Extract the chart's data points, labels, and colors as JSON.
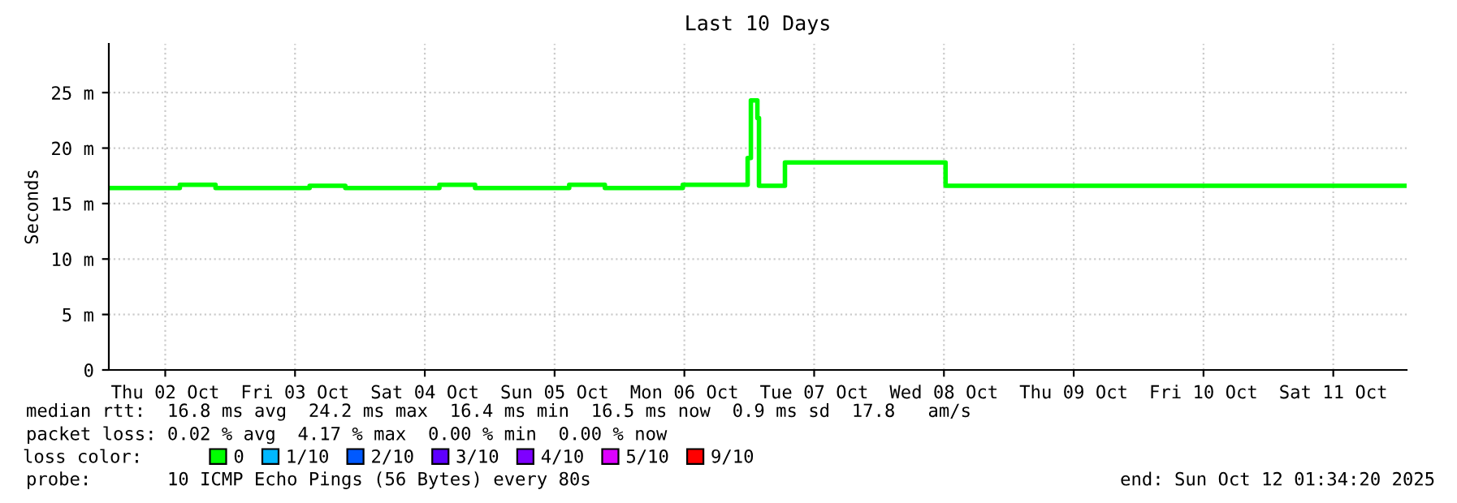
{
  "chart_data": {
    "type": "step",
    "title": "Last 10 Days",
    "ylabel": "Seconds",
    "x": [
      "2025-10-02T01:34",
      "2025-10-02T14:42",
      "2025-10-02T21:18",
      "2025-10-03T14:42",
      "2025-10-03T21:18",
      "2025-10-04T14:42",
      "2025-10-04T21:18",
      "2025-10-05T14:42",
      "2025-10-05T21:18",
      "2025-10-06T11:42",
      "2025-10-06T23:42",
      "2025-10-07T00:18",
      "2025-10-07T01:30",
      "2025-10-07T01:48",
      "2025-10-07T06:36",
      "2025-10-08T12:18",
      "2025-10-12T01:34"
    ],
    "series": [
      {
        "name": "0",
        "color": "#00ff00",
        "values": [
          16.4,
          16.7,
          16.4,
          16.6,
          16.4,
          16.7,
          16.4,
          16.7,
          16.4,
          16.7,
          19.1,
          24.3,
          22.7,
          16.6,
          18.7,
          16.6,
          16.6
        ]
      },
      {
        "name": "1/10",
        "color": "#00b8ff",
        "values": [
          null,
          null,
          null,
          null,
          null,
          null,
          null,
          null,
          null,
          null,
          null,
          null,
          null,
          null,
          null,
          null,
          null
        ]
      },
      {
        "name": "2/10",
        "color": "#0059ff",
        "values": [
          null,
          null,
          null,
          null,
          null,
          null,
          null,
          null,
          null,
          null,
          null,
          null,
          null,
          null,
          null,
          null,
          null
        ]
      },
      {
        "name": "3/10",
        "color": "#5e00ff",
        "values": [
          null,
          null,
          null,
          null,
          null,
          null,
          null,
          null,
          null,
          null,
          null,
          null,
          null,
          null,
          null,
          null,
          null
        ]
      },
      {
        "name": "4/10",
        "color": "#7e00ff",
        "values": [
          null,
          null,
          null,
          null,
          null,
          null,
          null,
          null,
          null,
          null,
          null,
          null,
          null,
          null,
          null,
          null,
          null
        ]
      },
      {
        "name": "5/10",
        "color": "#dd00ff",
        "values": [
          null,
          null,
          null,
          null,
          null,
          null,
          null,
          null,
          null,
          null,
          null,
          null,
          null,
          null,
          null,
          null,
          null
        ]
      },
      {
        "name": "9/10",
        "color": "#ff0000",
        "values": [
          null,
          null,
          null,
          null,
          null,
          null,
          null,
          null,
          null,
          null,
          null,
          null,
          null,
          null,
          null,
          null,
          null
        ]
      }
    ],
    "xlim": [
      "2025-10-02T01:34",
      "2025-10-12T01:34"
    ],
    "xticks": [
      {
        "value": "2025-10-02T12:00",
        "label": "Thu 02 Oct"
      },
      {
        "value": "2025-10-03T12:00",
        "label": "Fri 03 Oct"
      },
      {
        "value": "2025-10-04T12:00",
        "label": "Sat 04 Oct"
      },
      {
        "value": "2025-10-05T12:00",
        "label": "Sun 05 Oct"
      },
      {
        "value": "2025-10-06T12:00",
        "label": "Mon 06 Oct"
      },
      {
        "value": "2025-10-07T12:00",
        "label": "Tue 07 Oct"
      },
      {
        "value": "2025-10-08T12:00",
        "label": "Wed 08 Oct"
      },
      {
        "value": "2025-10-09T12:00",
        "label": "Thu 09 Oct"
      },
      {
        "value": "2025-10-10T12:00",
        "label": "Fri 10 Oct"
      },
      {
        "value": "2025-10-11T12:00",
        "label": "Sat 11 Oct"
      }
    ],
    "ylim": [
      0,
      29.4
    ],
    "yticks": [
      0,
      {
        "value": 5,
        "label": "5 m"
      },
      {
        "value": 10,
        "label": "10 m"
      },
      {
        "value": 15,
        "label": "15 m"
      },
      {
        "value": 20,
        "label": "20 m"
      },
      {
        "value": 25,
        "label": "25 m"
      }
    ],
    "grid": true,
    "legend": "bottom",
    "legend_title": "loss color:",
    "line_style": "solid",
    "marker": "none",
    "annotations": [
      "median rtt:  16.8 ms avg  24.2 ms max  16.4 ms min  16.5 ms now  0.9 ms sd  17.8   am/s",
      "packet loss: 0.02 % avg  4.17 % max  0.00 % min  0.00 % now",
      "probe:       10 ICMP Echo Pings (56 Bytes) every 80s",
      "end: Sun Oct 12 01:34:20 2025"
    ]
  }
}
